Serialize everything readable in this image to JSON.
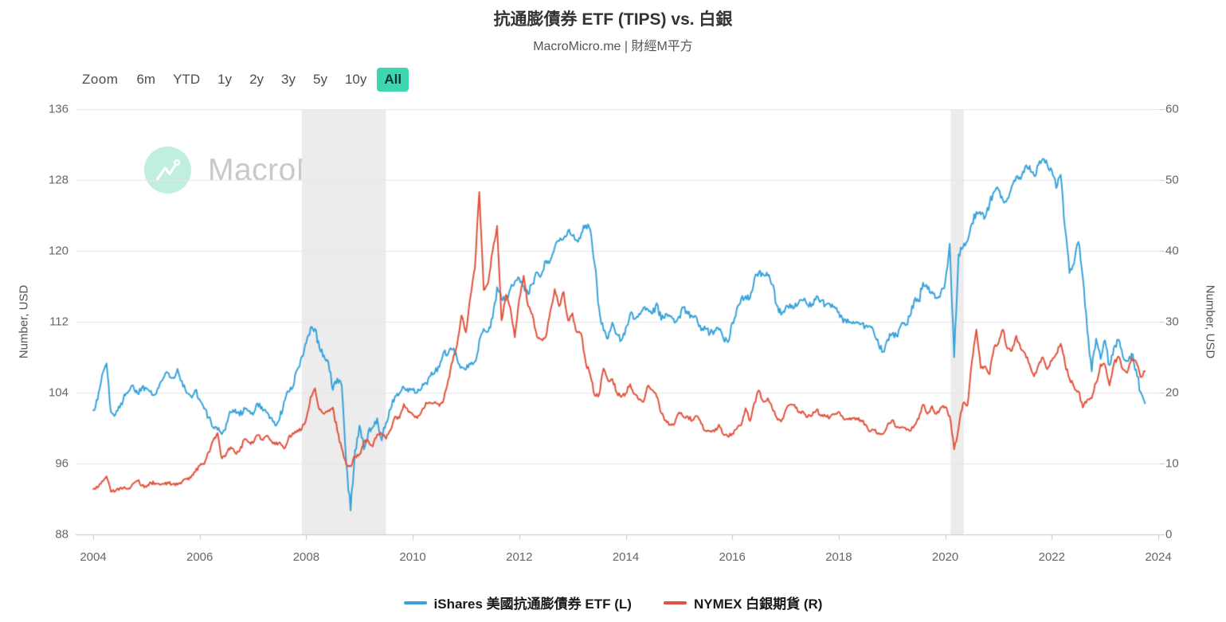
{
  "header": {
    "title": "抗通膨債券 ETF (TIPS) vs. 白銀",
    "subtitle": "MacroMicro.me | 財經M平方"
  },
  "toolbar": {
    "zoom_label": "Zoom",
    "ranges": [
      "6m",
      "YTD",
      "1y",
      "2y",
      "3y",
      "5y",
      "10y",
      "All"
    ],
    "active_range": "All",
    "active_bg_color": "#3ed6b1"
  },
  "watermark": {
    "text": "MacroMicro",
    "icon": "macromicro-trend-logo",
    "circle_color": "#c0eee1"
  },
  "chart_data": {
    "type": "line",
    "title": "抗通膨債券 ETF (TIPS) vs. 白銀",
    "subtitle": "MacroMicro.me | 財經M平方",
    "grid": {
      "horizontal": true,
      "vertical": false,
      "gridline_color": "#e7e7e7",
      "axis_line_color": "#c9c9c9"
    },
    "legend_position": "bottom",
    "x_axis": {
      "tick_years": [
        2004,
        2006,
        2008,
        2010,
        2012,
        2014,
        2016,
        2018,
        2020,
        2022,
        2024
      ],
      "tick_labels": [
        "2004",
        "2006",
        "2008",
        "2010",
        "2012",
        "2014",
        "2016",
        "2018",
        "2020",
        "2022",
        "2024"
      ],
      "min_year": 2003.67,
      "max_year": 2024.1
    },
    "left_axis": {
      "title": "Number, USD",
      "min": 88,
      "max": 136,
      "ticks": [
        88,
        96,
        104,
        112,
        120,
        128,
        136
      ]
    },
    "right_axis": {
      "title": "Number, USD",
      "min": 0,
      "max": 60,
      "ticks": [
        0,
        10,
        20,
        30,
        40,
        50,
        60
      ]
    },
    "recession_bands": [
      {
        "start_year": 2007.92,
        "end_year": 2009.5,
        "color": "#ececec"
      },
      {
        "start_year": 2020.1,
        "end_year": 2020.35,
        "color": "#ececec"
      }
    ],
    "series": [
      {
        "name": "iShares 美國抗通膨債券 ETF (L)",
        "axis": "left",
        "color": "#38a3da",
        "start": "2004-01",
        "interval": "monthly",
        "values": [
          102.0,
          103.2,
          106.0,
          107.3,
          101.8,
          101.5,
          102.3,
          103.8,
          104.2,
          104.8,
          103.9,
          104.6,
          104.5,
          104.2,
          103.8,
          105.0,
          105.8,
          106.2,
          105.7,
          106.7,
          105.3,
          104.0,
          103.6,
          104.3,
          103.2,
          102.2,
          101.2,
          100.1,
          99.8,
          99.3,
          100.5,
          101.8,
          102.1,
          101.4,
          102.3,
          101.9,
          101.5,
          102.8,
          102.4,
          101.8,
          101.2,
          100.3,
          101.0,
          103.0,
          104.1,
          104.6,
          106.6,
          108.1,
          109.6,
          111.4,
          111.2,
          109.0,
          108.2,
          107.4,
          104.3,
          105.6,
          104.8,
          96.2,
          90.7,
          97.5,
          100.3,
          97.6,
          99.6,
          100.1,
          101.1,
          98.6,
          100.6,
          102.1,
          103.6,
          103.9,
          104.6,
          104.1,
          104.3,
          104.0,
          104.5,
          105.1,
          105.9,
          106.3,
          106.9,
          108.6,
          108.4,
          108.9,
          107.8,
          106.9,
          106.6,
          107.2,
          107.5,
          109.9,
          111.2,
          110.9,
          112.4,
          115.9,
          114.6,
          114.4,
          115.7,
          116.5,
          116.9,
          116.0,
          115.1,
          116.3,
          117.6,
          117.3,
          118.9,
          118.9,
          120.4,
          121.1,
          121.4,
          122.3,
          121.7,
          121.2,
          122.0,
          122.9,
          122.4,
          118.5,
          113.5,
          111.0,
          110.1,
          111.9,
          110.6,
          109.9,
          111.3,
          112.9,
          112.3,
          112.9,
          113.6,
          113.4,
          112.9,
          114.1,
          112.2,
          112.9,
          112.6,
          111.9,
          112.6,
          113.6,
          112.9,
          112.6,
          112.4,
          111.0,
          111.2,
          110.7,
          111.0,
          111.1,
          110.1,
          109.7,
          111.9,
          113.4,
          114.6,
          114.9,
          114.7,
          116.9,
          117.6,
          117.3,
          117.2,
          116.2,
          113.9,
          112.8,
          113.6,
          114.0,
          113.6,
          114.2,
          114.4,
          113.9,
          114.0,
          114.9,
          114.4,
          113.9,
          114.0,
          113.7,
          113.1,
          111.9,
          112.3,
          111.8,
          112.0,
          111.7,
          111.5,
          111.5,
          110.6,
          109.4,
          108.6,
          110.0,
          110.6,
          110.4,
          111.6,
          111.6,
          112.6,
          114.4,
          114.3,
          116.4,
          115.7,
          115.4,
          114.7,
          115.3,
          116.5,
          120.8,
          108.0,
          119.6,
          120.4,
          121.1,
          123.1,
          124.4,
          124.1,
          123.8,
          125.4,
          126.7,
          126.9,
          125.7,
          125.9,
          127.3,
          128.4,
          128.1,
          129.5,
          129.6,
          128.5,
          129.7,
          130.4,
          129.7,
          129.1,
          127.1,
          128.6,
          122.5,
          117.5,
          118.5,
          121.0,
          117.0,
          111.0,
          106.4,
          110.1,
          107.8,
          109.9,
          107.1,
          109.1,
          110.0,
          108.1,
          107.6,
          108.4,
          106.6,
          104.1,
          102.8
        ]
      },
      {
        "name": "NYMEX 白銀期貨 (R)",
        "axis": "right",
        "color": "#e2533d",
        "start": "2004-01",
        "interval": "monthly",
        "values": [
          6.4,
          6.6,
          7.5,
          8.2,
          6.0,
          6.1,
          6.5,
          6.7,
          6.5,
          7.2,
          7.6,
          6.9,
          6.7,
          7.3,
          7.2,
          7.0,
          7.1,
          7.2,
          7.1,
          7.0,
          7.4,
          7.8,
          8.0,
          8.8,
          9.7,
          9.9,
          11.6,
          13.2,
          14.3,
          10.7,
          11.4,
          12.3,
          11.5,
          11.8,
          13.4,
          13.0,
          12.9,
          14.0,
          13.4,
          13.9,
          13.3,
          12.7,
          13.0,
          12.1,
          13.6,
          14.3,
          14.7,
          14.9,
          16.3,
          19.4,
          20.6,
          17.6,
          17.0,
          17.5,
          17.9,
          14.6,
          12.1,
          9.9,
          9.6,
          11.0,
          11.3,
          13.1,
          13.2,
          12.4,
          14.1,
          14.2,
          13.5,
          14.7,
          16.6,
          16.4,
          18.4,
          17.3,
          16.9,
          16.4,
          17.4,
          18.6,
          18.5,
          18.7,
          18.1,
          19.1,
          21.8,
          24.4,
          26.8,
          30.9,
          28.5,
          33.5,
          37.5,
          48.3,
          34.5,
          35.5,
          40.0,
          43.5,
          30.2,
          33.8,
          32.0,
          27.8,
          33.2,
          36.5,
          32.2,
          31.0,
          27.9,
          27.5,
          27.9,
          31.5,
          34.6,
          32.2,
          34.2,
          30.2,
          31.2,
          28.5,
          28.3,
          24.2,
          22.5,
          19.6,
          19.7,
          23.4,
          21.7,
          21.9,
          20.0,
          19.4,
          19.9,
          21.2,
          19.8,
          19.0,
          18.7,
          21.0,
          20.4,
          19.4,
          17.1,
          16.1,
          15.5,
          15.6,
          17.2,
          16.6,
          16.6,
          16.1,
          16.7,
          15.6,
          14.6,
          14.6,
          14.5,
          15.5,
          14.1,
          13.8,
          14.2,
          14.9,
          15.4,
          17.8,
          16.0,
          18.6,
          20.3,
          18.7,
          19.2,
          17.8,
          16.5,
          15.9,
          17.5,
          18.3,
          18.3,
          17.2,
          17.3,
          16.6,
          16.8,
          17.6,
          16.7,
          16.7,
          16.5,
          16.9,
          17.3,
          16.4,
          16.3,
          16.4,
          16.4,
          16.1,
          15.5,
          14.5,
          14.7,
          14.3,
          14.2,
          15.5,
          16.1,
          15.1,
          15.1,
          15.0,
          14.6,
          15.3,
          16.3,
          18.3,
          17.0,
          18.1,
          17.0,
          17.9,
          18.0,
          16.7,
          12.0,
          15.0,
          18.5,
          18.2,
          24.4,
          28.9,
          23.5,
          23.7,
          22.6,
          26.4,
          27.0,
          28.9,
          26.2,
          25.9,
          28.0,
          26.2,
          25.5,
          24.0,
          22.3,
          23.9,
          25.0,
          23.3,
          24.5,
          25.5,
          26.9,
          24.0,
          22.0,
          20.8,
          20.2,
          17.9,
          19.0,
          19.2,
          21.4,
          24.0,
          23.9,
          21.0,
          24.1,
          25.1,
          23.3,
          22.8,
          24.9,
          24.4,
          22.2,
          23.0
        ]
      }
    ]
  },
  "legend": {
    "items": [
      {
        "label": "iShares 美國抗通膨債券 ETF (L)",
        "color": "#38a3da"
      },
      {
        "label": "NYMEX 白銀期貨 (R)",
        "color": "#e2533d"
      }
    ]
  }
}
